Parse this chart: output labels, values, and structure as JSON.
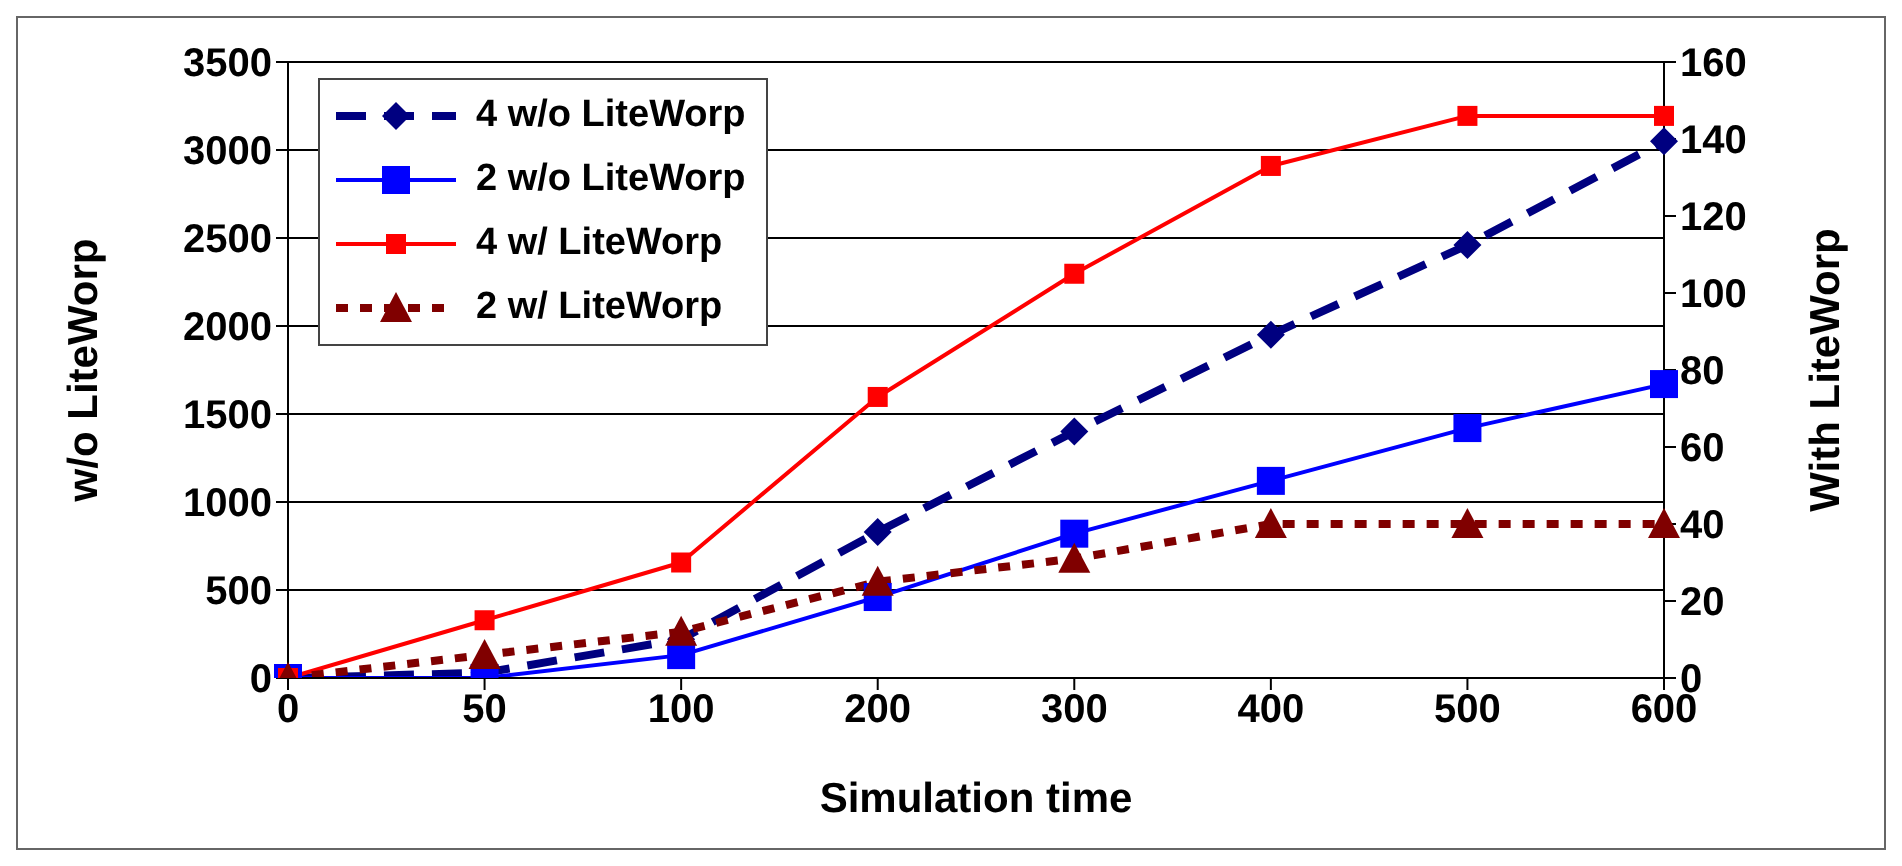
{
  "chart_data": {
    "type": "line",
    "xlabel": "Simulation time",
    "ylabel": "w/o LiteWorp",
    "y2label": "With LiteWorp",
    "categories": [
      "0",
      "50",
      "100",
      "200",
      "300",
      "400",
      "500",
      "600"
    ],
    "series": [
      {
        "name": "4 w/o LiteWorp",
        "color": "#000080",
        "values": [
          0,
          30,
          220,
          830,
          1400,
          1950,
          2460,
          3050
        ],
        "marker": "diamond",
        "line_style": "dashed"
      },
      {
        "name": "2 w/o LiteWorp",
        "color": "#0000ff",
        "values": [
          0,
          0,
          130,
          460,
          820,
          1120,
          1420,
          1670
        ],
        "marker": "square",
        "line_style": "solid"
      },
      {
        "name": "4 w/ LiteWorp",
        "color": "#ff0000",
        "values": [
          0,
          15,
          30,
          73,
          105,
          133,
          146,
          146
        ],
        "marker": "square",
        "line_style": "solid",
        "axis": "y2"
      },
      {
        "name": "2 w/ LiteWorp",
        "color": "#800000",
        "values": [
          0,
          6,
          12,
          25,
          31,
          40,
          40,
          40
        ],
        "marker": "triangle",
        "line_style": "dotted",
        "axis": "y2"
      }
    ],
    "ylim": [
      0,
      3500
    ],
    "yticks": [
      0,
      500,
      1000,
      1500,
      2000,
      2500,
      3000,
      3500
    ],
    "y2lim": [
      0,
      160
    ],
    "y2ticks": [
      0,
      20,
      40,
      60,
      80,
      100,
      120,
      140,
      160
    ],
    "grid": "y",
    "legend": "top left"
  }
}
